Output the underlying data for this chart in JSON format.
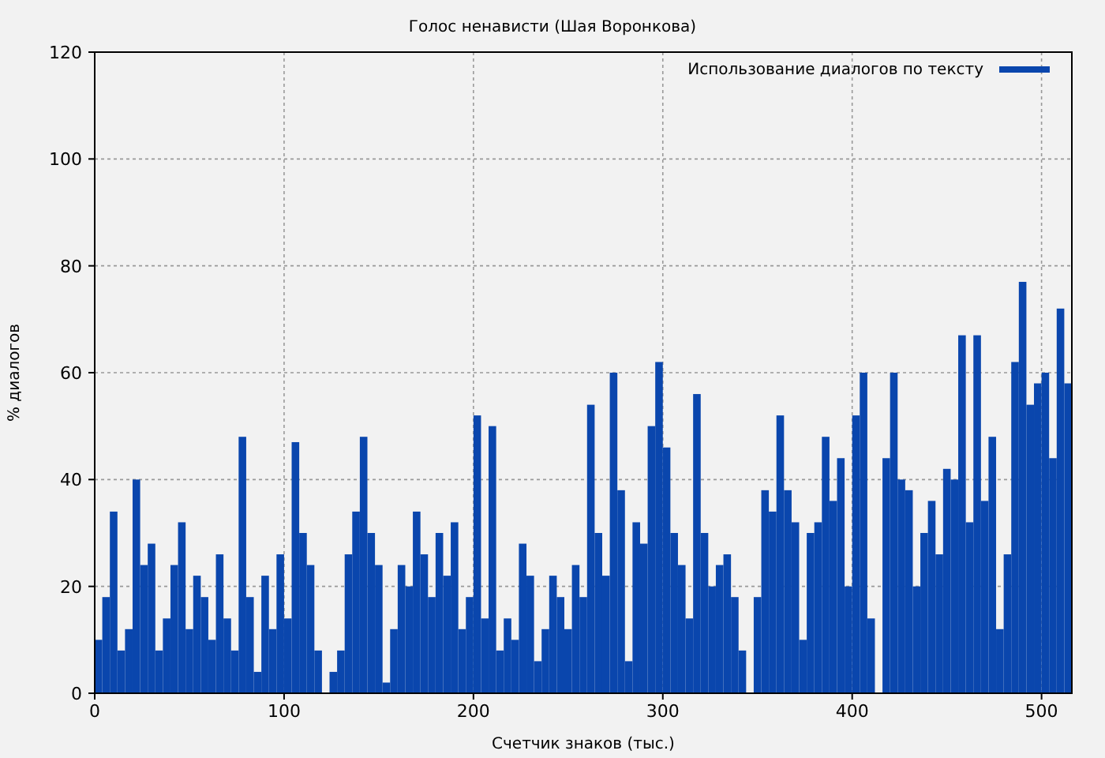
{
  "chart_data": {
    "type": "histogram",
    "title": "Голос ненависти (Шая Воронкова)",
    "xlabel": "Счетчик знаков (тыс.)",
    "ylabel": "% диалогов",
    "bins": [
      0,
      4,
      8,
      12,
      16,
      20,
      24,
      28,
      32,
      36,
      40,
      44,
      48,
      52,
      56,
      60,
      64,
      68,
      72,
      76,
      80,
      84,
      88,
      92,
      96,
      100,
      104,
      108,
      112,
      116,
      120,
      124,
      128,
      132,
      136,
      140,
      144,
      148,
      152,
      156,
      160,
      164,
      168,
      172,
      176,
      180,
      184,
      188,
      192,
      196,
      200,
      204,
      208,
      212,
      216,
      220,
      224,
      228,
      232,
      236,
      240,
      244,
      248,
      252,
      256,
      260,
      264,
      268,
      272,
      276,
      280,
      284,
      288,
      292,
      296,
      300,
      304,
      308,
      312,
      316,
      320,
      324,
      328,
      332,
      336,
      340,
      344,
      348,
      352,
      356,
      360,
      364,
      368,
      372,
      376,
      380,
      384,
      388,
      392,
      396,
      400,
      404,
      408,
      412,
      416,
      420,
      424,
      428,
      432,
      436,
      440,
      444,
      448,
      452,
      456,
      460,
      464,
      468,
      472,
      476,
      480,
      484,
      488,
      492,
      496,
      500,
      504,
      508,
      512,
      516
    ],
    "series": [
      {
        "name": "Использование диалогов по тексту",
        "color": "#0a46ad",
        "values": [
          10,
          18,
          34,
          8,
          12,
          40,
          24,
          28,
          8,
          14,
          24,
          32,
          12,
          22,
          18,
          10,
          26,
          14,
          8,
          48,
          18,
          4,
          22,
          12,
          26,
          14,
          47,
          30,
          24,
          8,
          0,
          4,
          8,
          26,
          34,
          48,
          30,
          24,
          2,
          12,
          24,
          20,
          34,
          26,
          18,
          30,
          22,
          32,
          12,
          18,
          52,
          14,
          50,
          8,
          14,
          10,
          28,
          22,
          6,
          12,
          22,
          18,
          12,
          24,
          18,
          54,
          30,
          22,
          60,
          38,
          6,
          32,
          28,
          50,
          62,
          46,
          30,
          24,
          14,
          56,
          30,
          20,
          24,
          26,
          18,
          8,
          0,
          18,
          38,
          34,
          52,
          38,
          32,
          10,
          30,
          32,
          48,
          36,
          44,
          20,
          52,
          60,
          14,
          0,
          44,
          60,
          40,
          38,
          20,
          30,
          36,
          26,
          42,
          40,
          67,
          32,
          67,
          36,
          48,
          12,
          26,
          62,
          77,
          54,
          58,
          60,
          44,
          72,
          58
        ]
      }
    ],
    "xlim": [
      0,
      516
    ],
    "xticks": [
      0,
      100,
      200,
      300,
      400,
      500
    ],
    "ylim": [
      0,
      120
    ],
    "yticks": [
      0,
      20,
      40,
      60,
      80,
      100,
      120
    ],
    "grid": true,
    "legend": "top right"
  }
}
